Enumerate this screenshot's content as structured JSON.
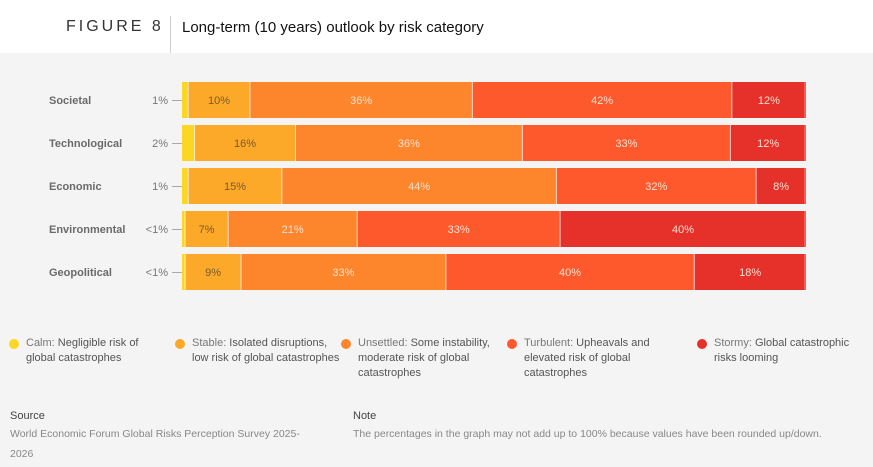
{
  "header": {
    "figure_label": "FIGURE 8",
    "title": "Long-term (10 years) outlook by risk category"
  },
  "chart_data": {
    "type": "bar",
    "orientation": "horizontal-stacked-100",
    "title": "Long-term (10 years) outlook by risk category",
    "categories": [
      "Societal",
      "Technological",
      "Economic",
      "Environmental",
      "Geopolitical"
    ],
    "series": [
      {
        "name": "Calm",
        "color": "#fcd624",
        "values": [
          1,
          2,
          1,
          0.5,
          0.5
        ],
        "labels": [
          "1%",
          "2%",
          "1%",
          "<1%",
          "<1%"
        ]
      },
      {
        "name": "Stable",
        "color": "#fca92a",
        "values": [
          10,
          16,
          15,
          7,
          9
        ],
        "labels": [
          "10%",
          "16%",
          "15%",
          "7%",
          "9%"
        ]
      },
      {
        "name": "Unsettled",
        "color": "#fd862d",
        "values": [
          36,
          36,
          44,
          21,
          33
        ],
        "labels": [
          "36%",
          "36%",
          "44%",
          "21%",
          "33%"
        ]
      },
      {
        "name": "Turbulent",
        "color": "#fd592d",
        "values": [
          42,
          33,
          32,
          33,
          40
        ],
        "labels": [
          "42%",
          "33%",
          "32%",
          "33%",
          "40%"
        ]
      },
      {
        "name": "Stormy",
        "color": "#e6302a",
        "values": [
          12,
          12,
          8,
          40,
          18
        ],
        "labels": [
          "12%",
          "12%",
          "8%",
          "40%",
          "18%"
        ]
      }
    ],
    "xlim": [
      0,
      100
    ],
    "grid": false,
    "legend_position": "bottom"
  },
  "legend": [
    {
      "name": "Calm:",
      "desc": " Negligible risk of global catastrophes",
      "color": "#fcd624"
    },
    {
      "name": "Stable:",
      "desc": " Isolated disruptions, low risk of global catastrophes",
      "color": "#fca92a"
    },
    {
      "name": "Unsettled:",
      "desc": " Some instability, moderate risk of global catastrophes",
      "color": "#fd862d"
    },
    {
      "name": "Turbulent:",
      "desc": " Upheavals and elevated risk of global catastrophes",
      "color": "#fd592d"
    },
    {
      "name": "Stormy:",
      "desc": " Global catastrophic risks looming",
      "color": "#e6302a"
    }
  ],
  "footer": {
    "source_heading": "Source",
    "source_text": "World Economic Forum Global Risks Perception Survey 2025-2026",
    "note_heading": "Note",
    "note_text": "The percentages in the graph may not add up to 100% because values have been rounded up/down."
  }
}
